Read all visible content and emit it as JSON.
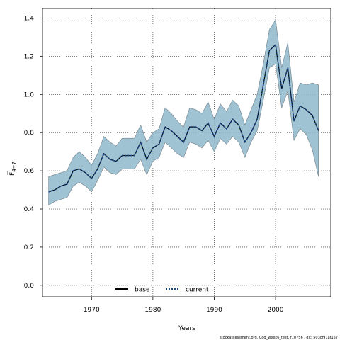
{
  "chart_data": {
    "type": "line",
    "xlabel": "Years",
    "ylabel_main": "F",
    "ylabel_sub": "4−7",
    "xlim": [
      1962,
      2009
    ],
    "ylim": [
      -0.06,
      1.45
    ],
    "x_ticks": [
      1970,
      1980,
      1990,
      2000
    ],
    "y_ticks": [
      0.0,
      0.2,
      0.4,
      0.6,
      0.8,
      1.0,
      1.2,
      1.4
    ],
    "y_tick_labels": [
      "0.0",
      "0.2",
      "0.4",
      "0.6",
      "0.8",
      "1.0",
      "1.2",
      "1.4"
    ],
    "grid": true,
    "legend_position": "bottom-center",
    "footnote": "stockassessment.org, Cod_week6_test, r10756 , git: 503cf91af157",
    "x": [
      1963,
      1964,
      1965,
      1966,
      1967,
      1968,
      1969,
      1970,
      1971,
      1972,
      1973,
      1974,
      1975,
      1976,
      1977,
      1978,
      1979,
      1980,
      1981,
      1982,
      1983,
      1984,
      1985,
      1986,
      1987,
      1988,
      1989,
      1990,
      1991,
      1992,
      1993,
      1994,
      1995,
      1996,
      1997,
      1998,
      1999,
      2000,
      2001,
      2002,
      2003,
      2004,
      2005,
      2006,
      2007
    ],
    "series": [
      {
        "name": "base",
        "color": "#000000",
        "style": "solid",
        "values": [
          0.49,
          0.5,
          0.52,
          0.53,
          0.6,
          0.61,
          0.59,
          0.56,
          0.61,
          0.69,
          0.66,
          0.65,
          0.68,
          0.68,
          0.68,
          0.75,
          0.66,
          0.72,
          0.74,
          0.83,
          0.81,
          0.78,
          0.75,
          0.83,
          0.83,
          0.81,
          0.85,
          0.78,
          0.85,
          0.82,
          0.87,
          0.84,
          0.75,
          0.8,
          0.87,
          1.05,
          1.23,
          1.26,
          1.03,
          1.14,
          0.86,
          0.94,
          0.92,
          0.89,
          0.81
        ]
      },
      {
        "name": "current",
        "color": "#1a4a8a",
        "style": "dotted",
        "values": [
          0.49,
          0.5,
          0.52,
          0.53,
          0.6,
          0.61,
          0.59,
          0.56,
          0.61,
          0.69,
          0.66,
          0.65,
          0.68,
          0.68,
          0.68,
          0.75,
          0.66,
          0.72,
          0.74,
          0.83,
          0.81,
          0.78,
          0.75,
          0.83,
          0.83,
          0.81,
          0.85,
          0.78,
          0.85,
          0.82,
          0.87,
          0.84,
          0.75,
          0.8,
          0.87,
          1.05,
          1.23,
          1.26,
          1.03,
          1.14,
          0.86,
          0.94,
          0.92,
          0.89,
          0.81
        ]
      }
    ],
    "band": {
      "color": "#8fb8cc",
      "edge_color": "#7a8a94",
      "lower": [
        0.42,
        0.44,
        0.45,
        0.46,
        0.52,
        0.54,
        0.52,
        0.49,
        0.55,
        0.62,
        0.59,
        0.58,
        0.61,
        0.61,
        0.61,
        0.66,
        0.58,
        0.65,
        0.67,
        0.75,
        0.72,
        0.69,
        0.67,
        0.75,
        0.74,
        0.72,
        0.76,
        0.7,
        0.77,
        0.74,
        0.78,
        0.75,
        0.67,
        0.75,
        0.81,
        0.97,
        1.14,
        1.16,
        0.93,
        1.02,
        0.76,
        0.82,
        0.79,
        0.71,
        0.57
      ],
      "upper": [
        0.57,
        0.58,
        0.59,
        0.6,
        0.67,
        0.7,
        0.67,
        0.63,
        0.69,
        0.78,
        0.75,
        0.73,
        0.77,
        0.77,
        0.77,
        0.84,
        0.75,
        0.8,
        0.82,
        0.93,
        0.9,
        0.86,
        0.83,
        0.93,
        0.92,
        0.9,
        0.96,
        0.87,
        0.95,
        0.91,
        0.97,
        0.94,
        0.84,
        0.92,
        1.0,
        1.16,
        1.34,
        1.39,
        1.14,
        1.27,
        0.96,
        1.06,
        1.05,
        1.06,
        1.05
      ]
    }
  }
}
